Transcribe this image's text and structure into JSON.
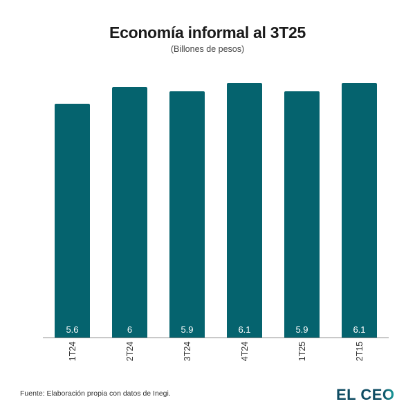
{
  "header": {
    "title": "Economía informal al 3T25",
    "subtitle": "(Billones de pesos)"
  },
  "footer": {
    "source": "Fuente: Elaboración propia con datos de Inegi.",
    "logo_text": "EL CE",
    "logo_last": "O"
  },
  "colors": {
    "bar": "#05636e",
    "axis": "#888888",
    "logo": "#0f4c63"
  },
  "chart_data": {
    "type": "bar",
    "title": "Economía informal al 3T25",
    "subtitle": "(Billones de pesos)",
    "categories": [
      "1T24",
      "2T24",
      "3T24",
      "4T24",
      "1T25",
      "2T15"
    ],
    "values": [
      5.6,
      6,
      5.9,
      6.1,
      5.9,
      6.1
    ],
    "value_labels": [
      "5.6",
      "6",
      "5.9",
      "6.1",
      "5.9",
      "6.1"
    ],
    "xlabel": "",
    "ylabel": "",
    "ylim": [
      0,
      6.1
    ],
    "grid": false,
    "legend": "none",
    "data_labels_position": "inside-bottom",
    "x_tick_rotation": -90
  }
}
